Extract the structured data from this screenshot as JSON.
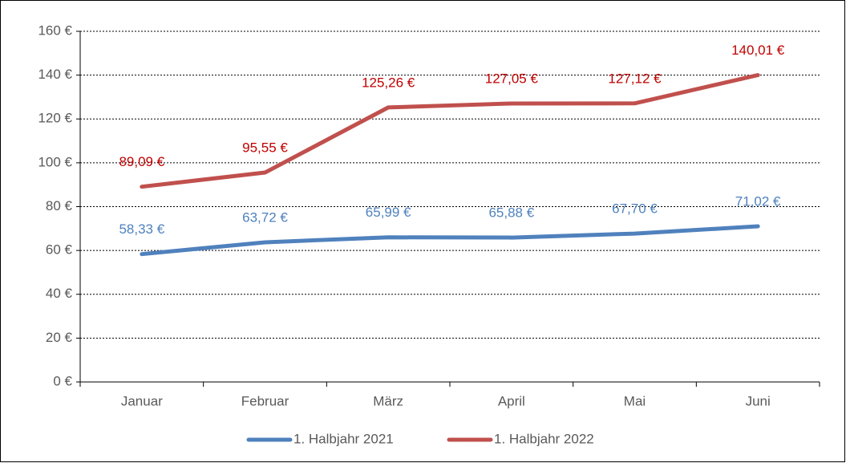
{
  "chart_data": {
    "type": "line",
    "categories": [
      "Januar",
      "Februar",
      "März",
      "April",
      "Mai",
      "Juni"
    ],
    "series": [
      {
        "name": "1. Halbjahr 2021",
        "color": "#4f81bd",
        "label_color": "#4f81bd",
        "values": [
          58.33,
          63.72,
          65.99,
          65.88,
          67.7,
          71.02
        ],
        "value_labels": [
          "58,33 €",
          "63,72 €",
          "65,99 €",
          "65,88 €",
          "67,70 €",
          "71,02 €"
        ]
      },
      {
        "name": "1. Halbjahr 2022",
        "color": "#c0504d",
        "label_color": "#c00000",
        "values": [
          89.09,
          95.55,
          125.26,
          127.05,
          127.12,
          140.01
        ],
        "value_labels": [
          "89,09 €",
          "95,55 €",
          "125,26 €",
          "127,05 €",
          "127,12 €",
          "140,01 €"
        ]
      }
    ],
    "ylim": [
      0,
      160
    ],
    "yticks": [
      {
        "value": 0,
        "label": "0 €"
      },
      {
        "value": 20,
        "label": "20 €"
      },
      {
        "value": 40,
        "label": "40 €"
      },
      {
        "value": 60,
        "label": "60 €"
      },
      {
        "value": 80,
        "label": "80 €"
      },
      {
        "value": 100,
        "label": "100 €"
      },
      {
        "value": 120,
        "label": "120 €"
      },
      {
        "value": 140,
        "label": "140 €"
      },
      {
        "value": 160,
        "label": "160 €"
      }
    ],
    "grid": true,
    "legend": "bottom"
  }
}
